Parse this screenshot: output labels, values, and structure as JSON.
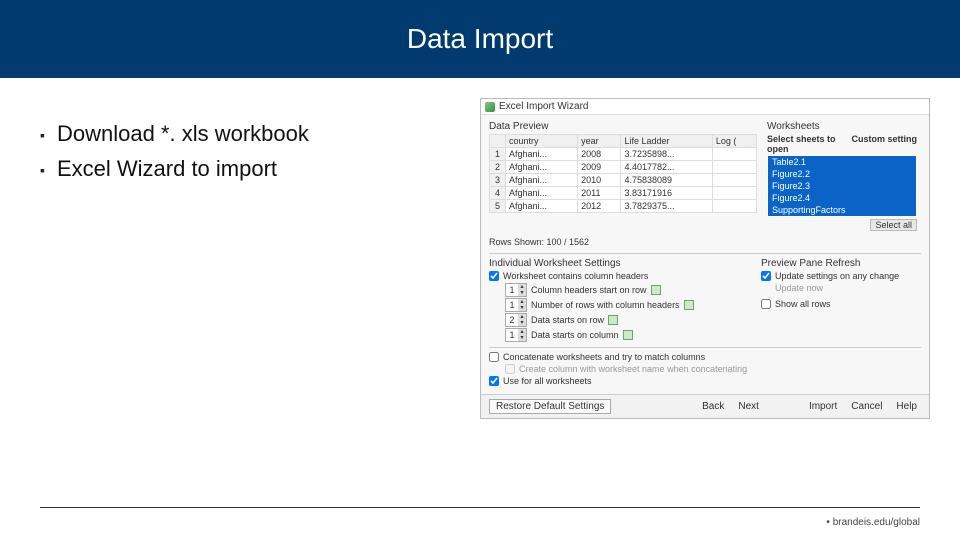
{
  "colors": {
    "header_bg": "#003a6e",
    "highlight": "#0a64c8"
  },
  "header": {
    "title": "Data Import"
  },
  "bullets": {
    "items": [
      {
        "text": "Download *. xls workbook"
      },
      {
        "text": "Excel Wizard to import"
      }
    ]
  },
  "dialog": {
    "title": "Excel Import Wizard",
    "preview": {
      "label": "Data Preview",
      "columns": [
        "",
        "country",
        "year",
        "Life Ladder",
        "Log ("
      ],
      "rows": [
        [
          "1",
          "Afghani...",
          "2008",
          "3.7235898...",
          ""
        ],
        [
          "2",
          "Afghani...",
          "2009",
          "4.4017782...",
          ""
        ],
        [
          "3",
          "Afghani...",
          "2010",
          "4.75838089",
          ""
        ],
        [
          "4",
          "Afghani...",
          "2011",
          "3.83171916",
          ""
        ],
        [
          "5",
          "Afghani...",
          "2012",
          "3.7829375...",
          ""
        ]
      ]
    },
    "worksheets": {
      "label": "Worksheets",
      "head_left": "Select sheets to open",
      "head_right": "Custom setting",
      "items": [
        "Table2.1",
        "Figure2.2",
        "Figure2.3",
        "Figure2.4",
        "SupportingFactors"
      ],
      "select_all": "Select all"
    },
    "rows_shown": "Rows Shown: 100 / 1562",
    "individual": {
      "label": "Individual Worksheet Settings",
      "contains_headers": "Worksheet contains column headers",
      "opts": [
        {
          "val": "1",
          "text": "Column headers start on row"
        },
        {
          "val": "1",
          "text": "Number of rows with column headers"
        },
        {
          "val": "2",
          "text": "Data starts on row"
        },
        {
          "val": "1",
          "text": "Data starts on column"
        }
      ]
    },
    "refresh": {
      "label": "Preview Pane Refresh",
      "update_any": "Update settings on any change",
      "update_now": "Update now",
      "show_all": "Show all rows"
    },
    "concat": {
      "line1": "Concatenate worksheets and try to match columns",
      "line2": "Create column with worksheet name when concatenating",
      "use_all": "Use for all worksheets"
    },
    "buttons": {
      "restore": "Restore Default Settings",
      "back": "Back",
      "next": "Next",
      "import": "Import",
      "cancel": "Cancel",
      "help": "Help"
    }
  },
  "footer": {
    "text": "• brandeis.edu/global"
  }
}
